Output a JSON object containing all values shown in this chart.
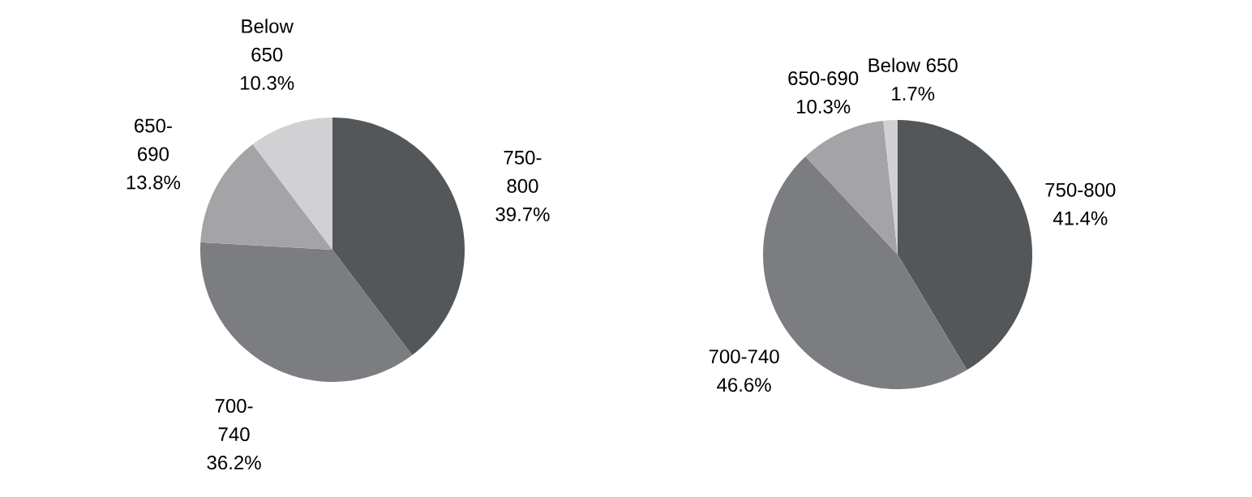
{
  "chart_data": [
    {
      "type": "pie",
      "categories": [
        "750-800",
        "700-740",
        "650-690",
        "Below 650"
      ],
      "values": [
        39.7,
        36.2,
        13.8,
        10.3
      ],
      "colors": [
        "#54575a",
        "#7c7d81",
        "#a4a4a7",
        "#d1d0d3"
      ],
      "value_labels": [
        "39.7%",
        "36.2%",
        "13.8%",
        "10.3%"
      ]
    },
    {
      "type": "pie",
      "categories": [
        "750-800",
        "700-740",
        "650-690",
        "Below 650"
      ],
      "values": [
        41.4,
        46.6,
        10.3,
        1.7
      ],
      "colors": [
        "#54575a",
        "#7c7d81",
        "#a4a4a7",
        "#d1d0d3"
      ],
      "value_labels": [
        "41.4%",
        "46.6%",
        "10.3%",
        "1.7%"
      ]
    }
  ]
}
